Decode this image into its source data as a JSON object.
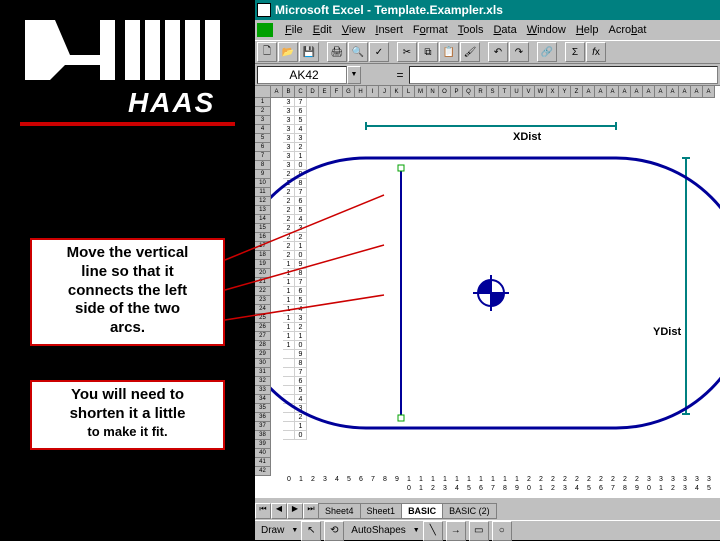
{
  "window": {
    "title": "Microsoft Excel - Template.Exampler.xls"
  },
  "menu": {
    "items": [
      "File",
      "Edit",
      "View",
      "Insert",
      "Format",
      "Tools",
      "Data",
      "Window",
      "Help",
      "Acrobat"
    ]
  },
  "toolbar": {
    "icons": [
      "new",
      "open",
      "save",
      "print",
      "preview",
      "spell",
      "cut",
      "copy",
      "paste",
      "format-painter",
      "undo",
      "redo",
      "hyperlink",
      "autosum",
      "fx"
    ]
  },
  "reference": {
    "cell": "AK42",
    "eq": "="
  },
  "col_letters": [
    "A",
    "B",
    "C",
    "D",
    "E",
    "F",
    "G",
    "H",
    "I",
    "J",
    "K",
    "L",
    "M",
    "N",
    "O",
    "P",
    "Q",
    "R",
    "S",
    "T",
    "U",
    "V",
    "W",
    "X",
    "Y",
    "Z",
    "A",
    "A",
    "A",
    "A",
    "A",
    "A",
    "A",
    "A",
    "A",
    "A",
    "A"
  ],
  "data_cols": {
    "B": [
      "3",
      "3",
      "3",
      "3",
      "3",
      "3",
      "3",
      "3",
      "2",
      "2",
      "2",
      "2",
      "2",
      "2",
      "2",
      "2",
      "2",
      "2",
      "1",
      "1",
      "1",
      "1",
      "1",
      "1",
      "1",
      "1",
      "1",
      "1",
      "",
      "",
      "",
      "",
      "",
      "",
      "",
      "",
      "",
      ""
    ],
    "C": [
      "7",
      "6",
      "5",
      "4",
      "3",
      "2",
      "1",
      "0",
      "9",
      "8",
      "7",
      "6",
      "5",
      "4",
      "3",
      "2",
      "1",
      "0",
      "9",
      "8",
      "7",
      "6",
      "5",
      "4",
      "3",
      "2",
      "1",
      "0",
      "9",
      "8",
      "7",
      "6",
      "5",
      "4",
      "3",
      "2",
      "1",
      "0"
    ]
  },
  "bottom_row1": [
    "0",
    "1",
    "2",
    "3",
    "4",
    "5",
    "6",
    "7",
    "8",
    "9",
    "1",
    "1",
    "1",
    "1",
    "1",
    "1",
    "1",
    "1",
    "1",
    "1",
    "2",
    "2",
    "2",
    "2",
    "2",
    "2",
    "2",
    "2",
    "2",
    "2",
    "3",
    "3",
    "3",
    "3",
    "3",
    "3"
  ],
  "bottom_row2": [
    "",
    "",
    "",
    "",
    "",
    "",
    "",
    "",
    "",
    "",
    "0",
    "1",
    "2",
    "3",
    "4",
    "5",
    "6",
    "7",
    "8",
    "9",
    "0",
    "1",
    "2",
    "3",
    "4",
    "5",
    "6",
    "7",
    "8",
    "9",
    "0",
    "1",
    "2",
    "3",
    "4",
    "5"
  ],
  "sheets": {
    "tabs": [
      "Sheet4",
      "Sheet1",
      "BASIC",
      "BASIC (2)"
    ],
    "active": 2
  },
  "drawbar": {
    "draw": "Draw",
    "autoshapes": "AutoShapes"
  },
  "labels": {
    "xdist": "XDist",
    "ydist": "YDist"
  },
  "instructions": {
    "box1_l1": "Move the vertical",
    "box1_l2": "line so that it",
    "box1_l3": "connects the left",
    "box1_l4": "side of the two",
    "box1_l5": "arcs.",
    "box2_l1": "You will need to",
    "box2_l2": "shorten it a little",
    "box2_l3": "to make it fit."
  },
  "colors": {
    "titlebar": "#008080",
    "accent": "#c00000",
    "shape_blue": "#000099",
    "shape_teal": "#008080"
  }
}
